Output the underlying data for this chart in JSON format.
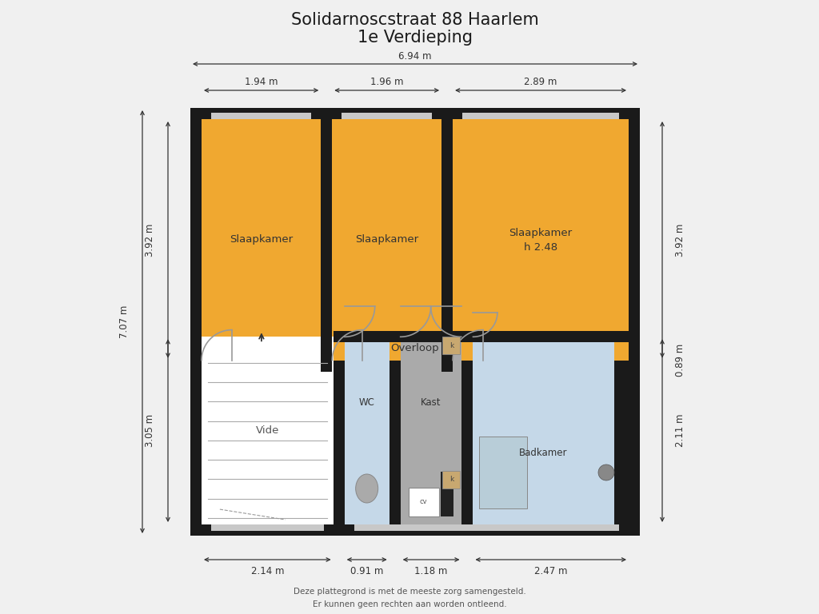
{
  "title_line1": "Solidarnoscstraat 88 Haarlem",
  "title_line2": "1e Verdieping",
  "title_fontsize": 15,
  "bg_color": "#f0f0f0",
  "wall_color": "#1a1a1a",
  "wall_thickness": 0.22,
  "orange_color": "#F0A830",
  "blue_color": "#C5D8E8",
  "gray_color": "#AAAAAA",
  "white_room": "#FFFFFF",
  "dim_top_total": "6.94 m",
  "dim_top_1": "1.94 m",
  "dim_top_2": "1.96 m",
  "dim_top_3": "2.89 m",
  "dim_left_total": "7.07 m",
  "dim_left_upper": "3.92 m",
  "dim_right_upper": "3.92 m",
  "dim_right_lower_1": "0.89 m",
  "dim_right_lower_2": "2.11 m",
  "dim_left_lower": "3.05 m",
  "dim_bottom_1": "2.14 m",
  "dim_bottom_2": "0.91 m",
  "dim_bottom_3": "1.18 m",
  "dim_bottom_4": "2.47 m",
  "footer_line1": "Deze plattegrond is met de meeste zorg samengesteld.",
  "footer_line2": "Er kunnen geen rechten aan worden ontleend."
}
